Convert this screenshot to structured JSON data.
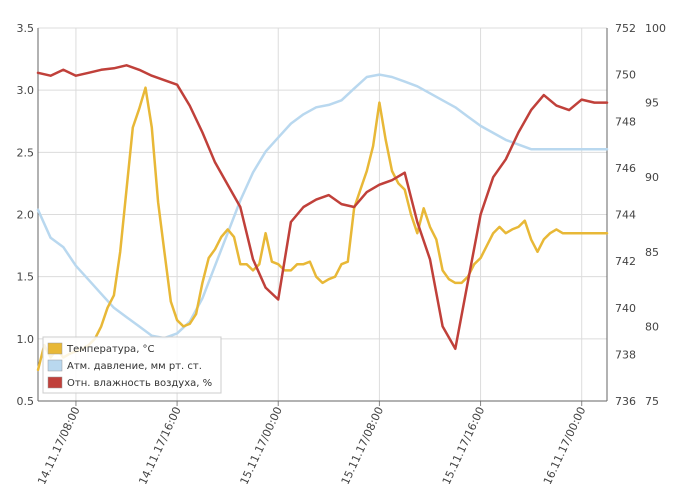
{
  "chart_data": {
    "type": "line",
    "title": "",
    "grid": true,
    "legend_position": "bottom-left",
    "x_tick_labels": [
      "14.11.17/08:00",
      "14.11.17/16:00",
      "15.11.17/00:00",
      "15.11.17/08:00",
      "15.11.17/16:00",
      "16.11.17/00:00"
    ],
    "x_range": [
      "14.11.17/05:00",
      "16.11.17/02:30"
    ],
    "axes": {
      "left": {
        "min": 0.5,
        "max": 3.5,
        "ticks": [
          "0.5",
          "1.0",
          "1.5",
          "2.0",
          "2.5",
          "3.0",
          "3.5"
        ]
      },
      "right_inner": {
        "min": 736,
        "max": 752,
        "ticks": [
          "736",
          "738",
          "740",
          "742",
          "744",
          "746",
          "748",
          "750",
          "752"
        ]
      },
      "right_outer": {
        "min": 75,
        "max": 100,
        "ticks": [
          "75",
          "80",
          "85",
          "90",
          "95",
          "100"
        ]
      }
    },
    "series": [
      {
        "name": "Температура, °C",
        "axis": "left",
        "color": "#e8b837",
        "hours": [
          0,
          0.5,
          1,
          1.5,
          2,
          2.5,
          3,
          3.5,
          4,
          4.5,
          5,
          5.5,
          6,
          6.5,
          7,
          7.5,
          8,
          8.5,
          9,
          9.5,
          10,
          10.5,
          11,
          11.5,
          12,
          12.5,
          13,
          13.5,
          14,
          14.5,
          15,
          15.5,
          16,
          16.5,
          17,
          17.5,
          18,
          18.5,
          19,
          19.5,
          20,
          20.5,
          21,
          21.5,
          22,
          22.5,
          23,
          23.5,
          24,
          24.5,
          25,
          25.5,
          26,
          26.5,
          27,
          27.5,
          28,
          28.5,
          29,
          29.5,
          30,
          30.5,
          31,
          31.5,
          32,
          32.5,
          33,
          33.5,
          34,
          34.5,
          35,
          35.5,
          36,
          36.5,
          37,
          37.5,
          38,
          38.5,
          39,
          39.5,
          40,
          40.5,
          41,
          41.5,
          42,
          42.5,
          43,
          43.5,
          44,
          44.5,
          45
        ],
        "values": [
          0.75,
          0.95,
          0.85,
          0.92,
          0.85,
          0.88,
          0.9,
          0.92,
          0.95,
          1.0,
          1.1,
          1.25,
          1.35,
          1.7,
          2.2,
          2.7,
          2.85,
          3.02,
          2.7,
          2.1,
          1.7,
          1.3,
          1.15,
          1.1,
          1.12,
          1.2,
          1.45,
          1.65,
          1.72,
          1.82,
          1.88,
          1.82,
          1.6,
          1.6,
          1.55,
          1.6,
          1.85,
          1.62,
          1.6,
          1.55,
          1.55,
          1.6,
          1.6,
          1.62,
          1.5,
          1.45,
          1.48,
          1.5,
          1.6,
          1.62,
          2.05,
          2.2,
          2.35,
          2.55,
          2.9,
          2.6,
          2.35,
          2.25,
          2.2,
          2.0,
          1.85,
          2.05,
          1.9,
          1.8,
          1.55,
          1.48,
          1.45,
          1.45,
          1.5,
          1.6,
          1.65,
          1.75,
          1.85,
          1.9,
          1.85,
          1.88,
          1.9,
          1.95,
          1.8,
          1.7,
          1.8,
          1.85,
          1.88,
          1.85,
          1.85,
          1.85,
          1.85,
          1.85,
          1.85,
          1.85,
          1.85
        ]
      },
      {
        "name": "Атм. давление, мм рт. ст.",
        "axis": "right_inner",
        "color": "#b9d8ef",
        "hours": [
          0,
          1,
          2,
          3,
          4,
          5,
          6,
          7,
          8,
          9,
          10,
          11,
          12,
          13,
          14,
          15,
          16,
          17,
          18,
          19,
          20,
          21,
          22,
          23,
          24,
          25,
          26,
          27,
          28,
          29,
          30,
          31,
          32,
          33,
          34,
          35,
          36,
          37,
          38,
          39,
          40,
          41,
          42,
          43,
          44,
          45
        ],
        "values": [
          744.2,
          743.0,
          742.6,
          741.8,
          741.2,
          740.6,
          740.0,
          739.6,
          739.2,
          738.8,
          738.7,
          738.9,
          739.4,
          740.4,
          741.8,
          743.2,
          744.6,
          745.8,
          746.7,
          747.3,
          747.9,
          748.3,
          748.6,
          748.7,
          748.9,
          749.4,
          749.9,
          750.0,
          749.9,
          749.7,
          749.5,
          749.2,
          748.9,
          748.6,
          748.2,
          747.8,
          747.5,
          747.2,
          747.0,
          746.8,
          746.8,
          746.8,
          746.8,
          746.8,
          746.8,
          746.8
        ]
      },
      {
        "name": "Отн. влажность воздуха, %",
        "axis": "right_outer",
        "color": "#c0403a",
        "hours": [
          0,
          1,
          2,
          3,
          4,
          5,
          6,
          7,
          8,
          9,
          10,
          11,
          12,
          13,
          14,
          15,
          16,
          17,
          18,
          19,
          20,
          21,
          22,
          23,
          24,
          25,
          26,
          27,
          28,
          29,
          30,
          31,
          32,
          33,
          34,
          35,
          36,
          37,
          38,
          39,
          40,
          41,
          42,
          43,
          44,
          45
        ],
        "values": [
          97.0,
          96.8,
          97.2,
          96.8,
          97.0,
          97.2,
          97.3,
          97.5,
          97.2,
          96.8,
          96.5,
          96.2,
          94.8,
          93.0,
          91.0,
          89.5,
          88.0,
          84.5,
          82.6,
          81.8,
          87.0,
          88.0,
          88.5,
          88.8,
          88.2,
          88.0,
          89.0,
          89.5,
          89.8,
          90.3,
          87.0,
          84.5,
          80.0,
          78.5,
          83.0,
          87.5,
          90.0,
          91.2,
          93.0,
          94.5,
          95.5,
          94.8,
          94.5,
          95.2,
          95.0,
          95.0
        ]
      }
    ]
  }
}
